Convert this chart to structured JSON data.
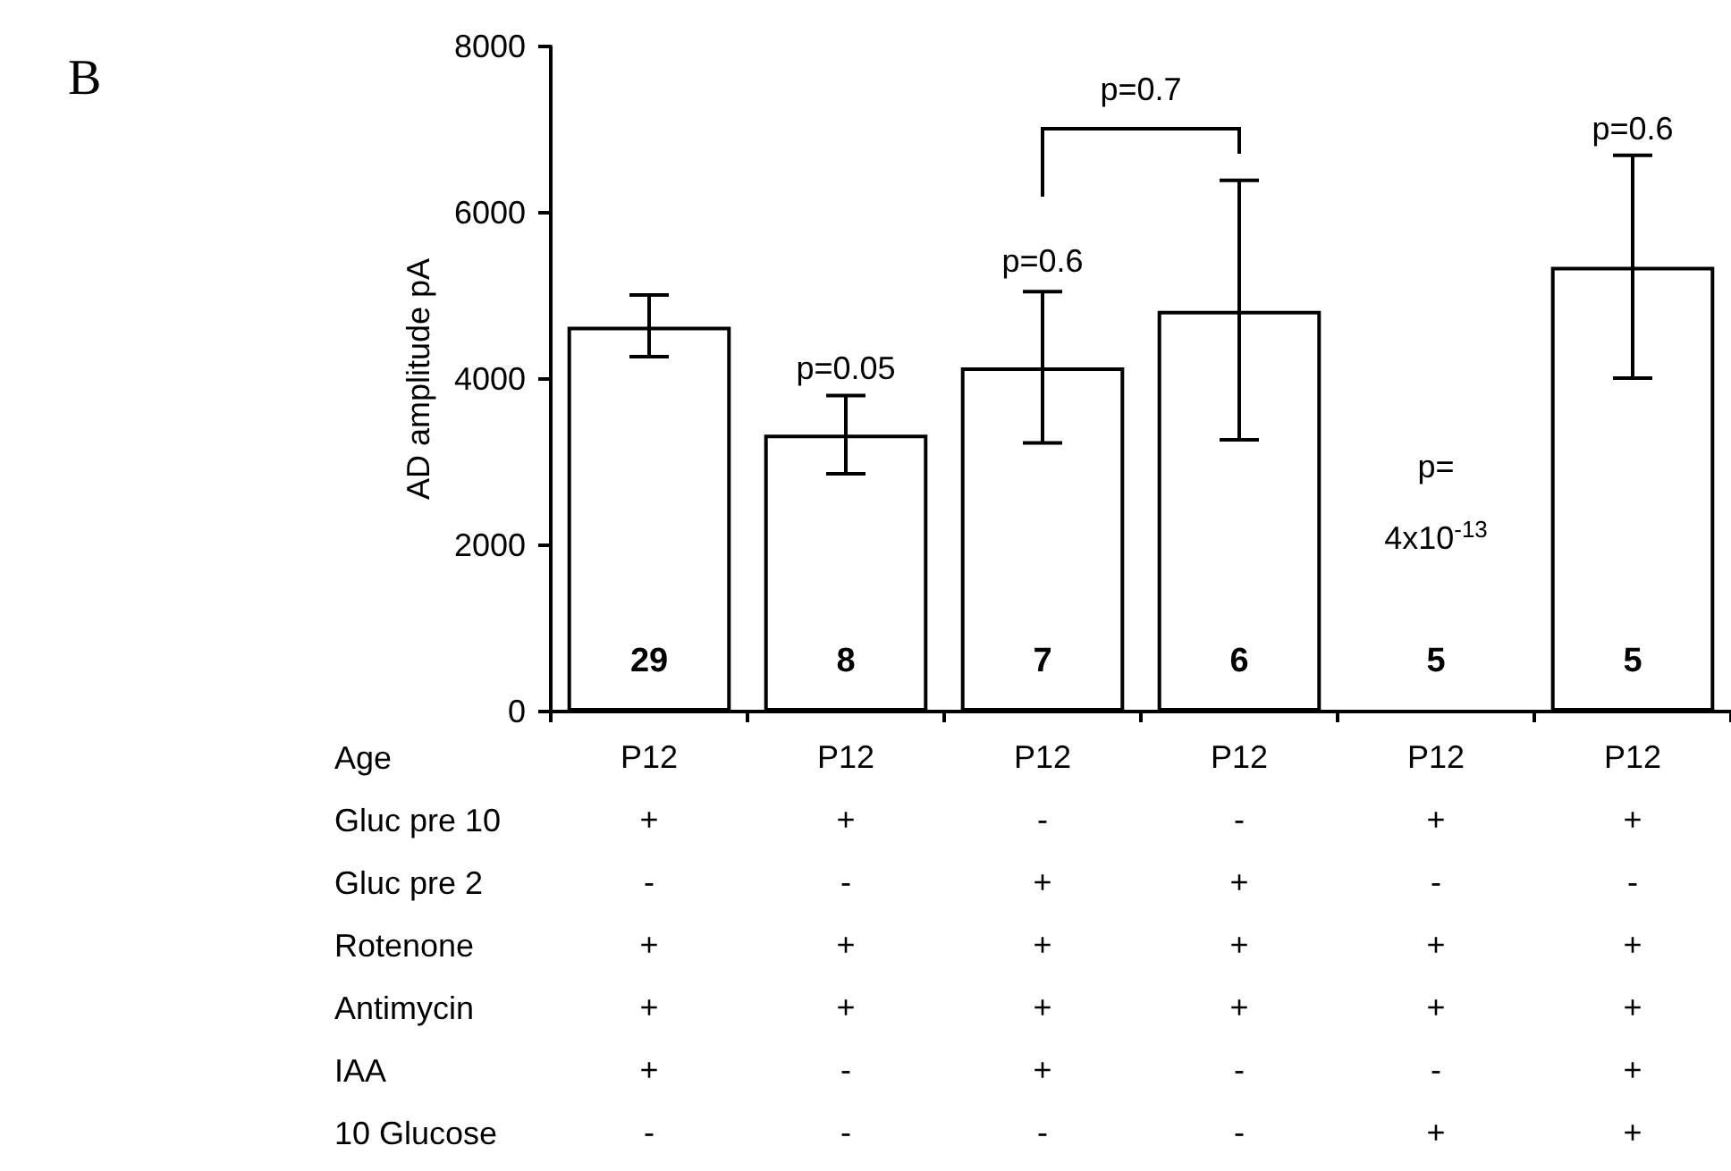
{
  "chart_data": {
    "type": "bar",
    "categories": [
      "P12\n+\n-\n+\n+\n+\n-",
      "P12\n+\n-\n+\n+\n-\n-",
      "P12\n-\n+\n+\n+\n+\n-",
      "P12\n-\n+\n+\n+\n-\n-",
      "P12\n+\n-\n+\n+\n-\n+",
      "P12\n+\n-\n+\n+\n+\n+"
    ],
    "values": [
      4630,
      3330,
      4140,
      4820,
      null,
      5350
    ],
    "errors": [
      [
        4270,
        5010
      ],
      [
        2860,
        3800
      ],
      [
        3230,
        5050
      ],
      [
        3270,
        6390
      ],
      null,
      [
        4010,
        6690
      ]
    ],
    "color": "#ffffff",
    "xlabel": "Age\nGluc pre 10\nGluc pre 2\nRotenone\nAntimycin\nIAA\n10 Glucose",
    "ylabel": "AD amplitude pA",
    "ylim": [
      0,
      8000
    ],
    "yticks": [
      0,
      2000,
      4000,
      6000,
      8000
    ],
    "annotations": [
      "B",
      "p=0.7",
      "p=0.05",
      "p=0.6",
      "p=0.6",
      "p=\n4x10$^{-13}$",
      "29",
      "8",
      "7",
      "6",
      "5",
      "5"
    ]
  }
}
